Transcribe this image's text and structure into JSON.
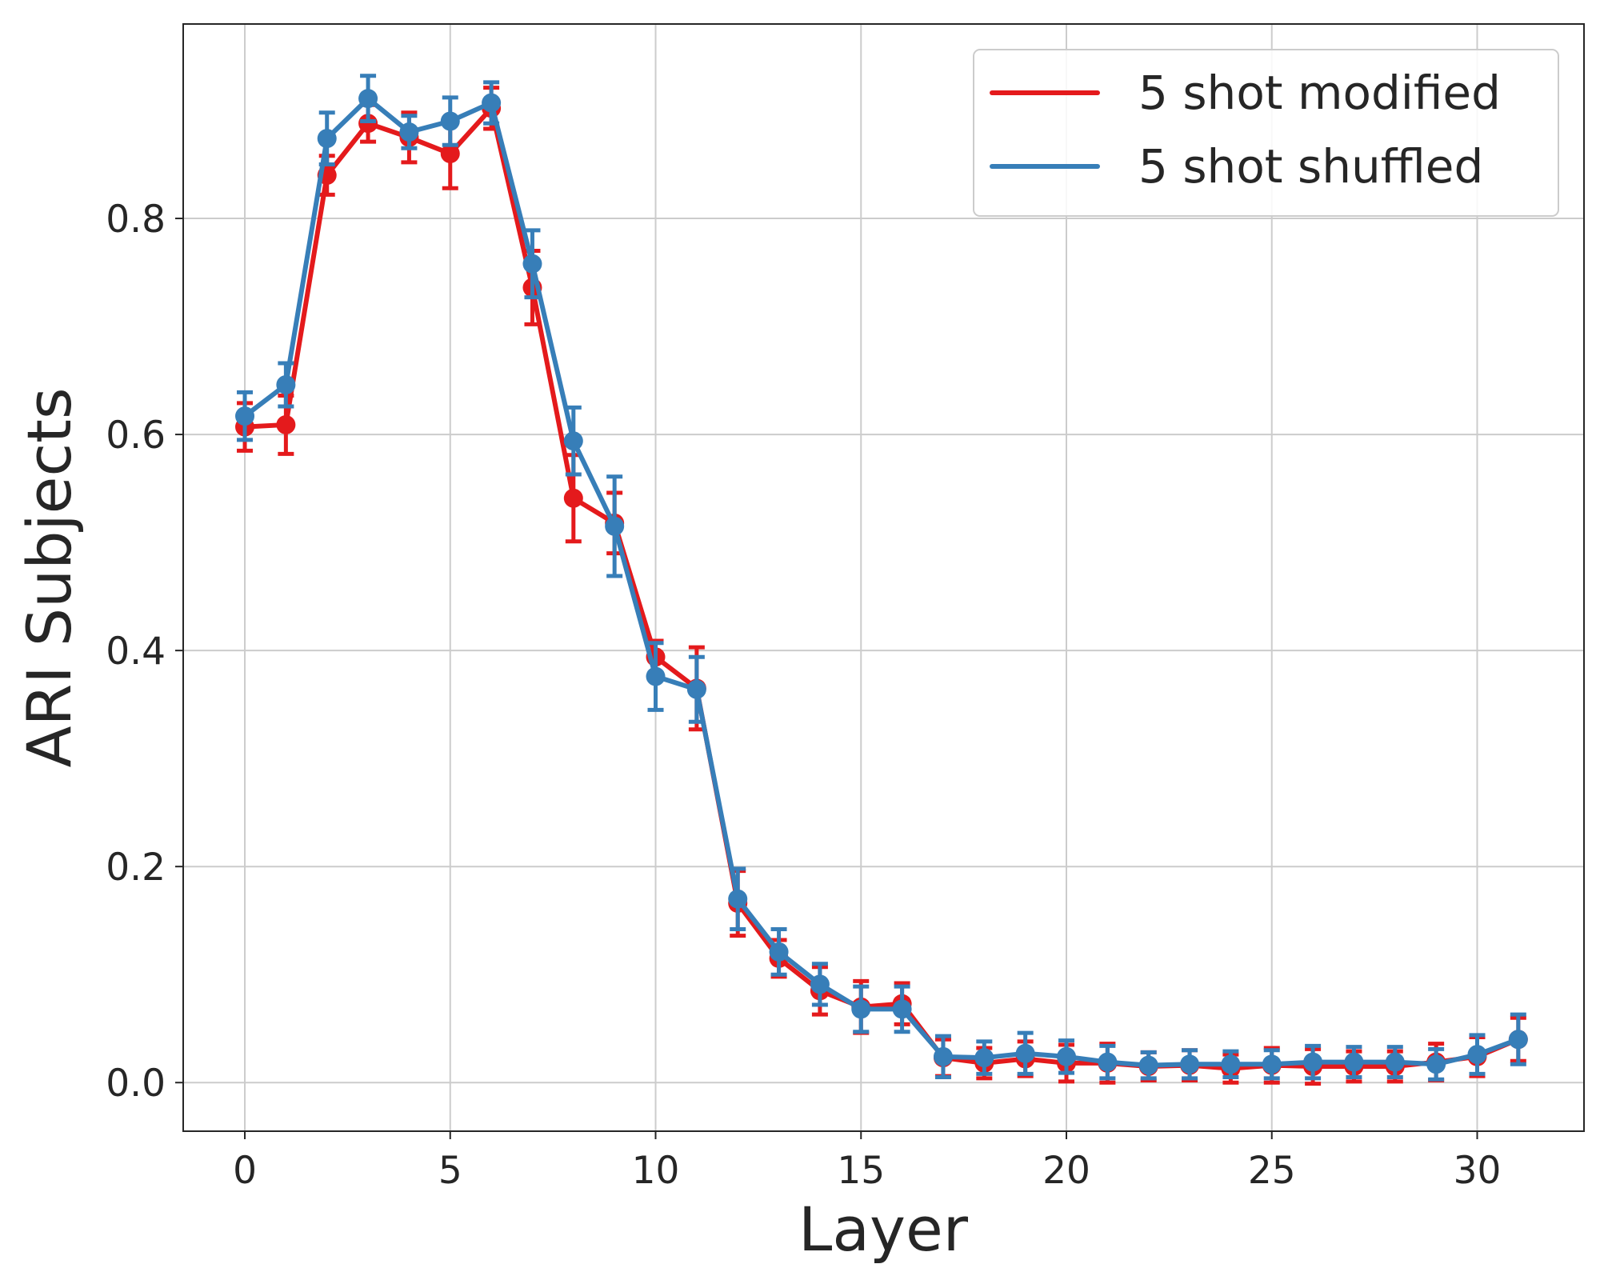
{
  "chart_data": {
    "type": "line",
    "title": "",
    "xlabel": "Layer",
    "ylabel": "ARI Subjects",
    "xlim": [
      -1.5,
      32.6
    ],
    "ylim": [
      -0.045,
      0.98
    ],
    "xticks": [
      0,
      5,
      10,
      15,
      20,
      25,
      30
    ],
    "yticks": [
      0.0,
      0.2,
      0.4,
      0.6,
      0.8
    ],
    "xtick_labels": [
      "0",
      "5",
      "10",
      "15",
      "20",
      "25",
      "30"
    ],
    "ytick_labels": [
      "0.0",
      "0.2",
      "0.4",
      "0.6",
      "0.8"
    ],
    "grid": true,
    "legend_position": "top-right",
    "x": [
      0,
      1,
      2,
      3,
      4,
      5,
      6,
      7,
      8,
      9,
      10,
      11,
      12,
      13,
      14,
      15,
      16,
      17,
      18,
      19,
      20,
      21,
      22,
      23,
      24,
      25,
      26,
      27,
      28,
      29,
      30,
      31
    ],
    "series": [
      {
        "name": "5 shot modified",
        "color": "#e41a1c",
        "values": [
          0.607,
          0.609,
          0.84,
          0.888,
          0.875,
          0.86,
          0.902,
          0.736,
          0.541,
          0.518,
          0.394,
          0.365,
          0.166,
          0.115,
          0.085,
          0.07,
          0.073,
          0.023,
          0.018,
          0.022,
          0.018,
          0.018,
          0.015,
          0.016,
          0.013,
          0.016,
          0.015,
          0.015,
          0.015,
          0.019,
          0.024,
          0.04
        ],
        "errors": [
          0.022,
          0.027,
          0.018,
          0.017,
          0.023,
          0.032,
          0.019,
          0.034,
          0.04,
          0.028,
          0.015,
          0.038,
          0.03,
          0.017,
          0.022,
          0.024,
          0.019,
          0.017,
          0.014,
          0.016,
          0.017,
          0.018,
          0.013,
          0.014,
          0.013,
          0.016,
          0.016,
          0.014,
          0.014,
          0.017,
          0.018,
          0.02
        ]
      },
      {
        "name": "5 shot shuffled",
        "color": "#377eb8",
        "values": [
          0.617,
          0.646,
          0.874,
          0.911,
          0.88,
          0.89,
          0.907,
          0.758,
          0.594,
          0.515,
          0.376,
          0.364,
          0.17,
          0.121,
          0.091,
          0.068,
          0.068,
          0.024,
          0.023,
          0.027,
          0.024,
          0.019,
          0.016,
          0.017,
          0.017,
          0.017,
          0.019,
          0.019,
          0.019,
          0.017,
          0.026,
          0.04
        ],
        "errors": [
          0.022,
          0.02,
          0.024,
          0.021,
          0.015,
          0.022,
          0.019,
          0.031,
          0.031,
          0.046,
          0.031,
          0.03,
          0.028,
          0.021,
          0.019,
          0.021,
          0.021,
          0.019,
          0.015,
          0.019,
          0.015,
          0.015,
          0.012,
          0.013,
          0.012,
          0.013,
          0.015,
          0.014,
          0.014,
          0.014,
          0.018,
          0.023
        ]
      }
    ]
  }
}
